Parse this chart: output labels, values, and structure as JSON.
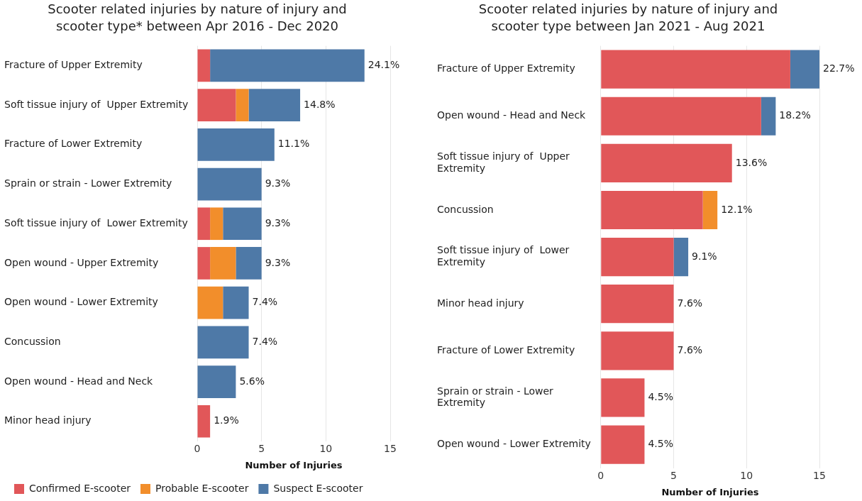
{
  "chart_data": [
    {
      "type": "bar",
      "orientation": "horizontal",
      "stacked": true,
      "title": "Scooter related injuries by nature of injury and scooter type* between Apr 2016 - Dec 2020",
      "xlabel": "Number of Injuries",
      "categories": [
        "Fracture of Upper Extremity",
        "Soft tissue injury of  Upper Extremity",
        "Fracture of Lower Extremity",
        "Sprain or strain - Lower Extremity",
        "Soft tissue injury of  Lower Extremity",
        "Open wound - Upper Extremity",
        "Open wound - Lower Extremity",
        "Concussion",
        "Open wound - Head and Neck",
        "Minor head injury"
      ],
      "series": [
        {
          "name": "Confirmed E-scooter",
          "color": "#e15759",
          "values": [
            1,
            3,
            0,
            0,
            1,
            1,
            0,
            0,
            0,
            1
          ]
        },
        {
          "name": "Probable E-scooter",
          "color": "#f28e2b",
          "values": [
            0,
            1,
            0,
            0,
            1,
            2,
            2,
            0,
            0,
            0
          ]
        },
        {
          "name": "Suspect E-scooter",
          "color": "#4e79a7",
          "values": [
            12,
            4,
            6,
            5,
            3,
            2,
            2,
            4,
            3,
            0
          ]
        }
      ],
      "annotations": [
        {
          "text": "24.1%",
          "x": 13,
          "y": "Fracture of Upper Extremity"
        },
        {
          "text": "14.8%",
          "x": 8,
          "y": "Soft tissue injury of  Upper Extremity"
        },
        {
          "text": "11.1%",
          "x": 6,
          "y": "Fracture of Lower Extremity"
        },
        {
          "text": "9.3%",
          "x": 5,
          "y": "Sprain or strain - Lower Extremity"
        },
        {
          "text": "9.3%",
          "x": 5,
          "y": "Soft tissue injury of  Lower Extremity"
        },
        {
          "text": "9.3%",
          "x": 5,
          "y": "Open wound - Upper Extremity"
        },
        {
          "text": "7.4%",
          "x": 4,
          "y": "Open wound - Lower Extremity"
        },
        {
          "text": "7.4%",
          "x": 4,
          "y": "Concussion"
        },
        {
          "text": "5.6%",
          "x": 3,
          "y": "Open wound - Head and Neck"
        },
        {
          "text": "1.9%",
          "x": 1,
          "y": "Minor head injury"
        }
      ],
      "xlim": [
        0,
        15
      ],
      "xticks": [
        0,
        5,
        10,
        15
      ],
      "grid": "x",
      "legend": "bottom"
    },
    {
      "type": "bar",
      "orientation": "horizontal",
      "stacked": true,
      "title": "Scooter related injuries by nature of injury and scooter type between Jan 2021 - Aug 2021",
      "xlabel": "Number of Injuries",
      "categories": [
        "Fracture of Upper Extremity",
        "Open wound - Head and Neck",
        "Soft tissue injury of  Upper Extremity",
        "Concussion",
        "Soft tissue injury of  Lower Extremity",
        "Minor head injury",
        "Fracture of Lower Extremity",
        "Sprain or strain - Lower Extremity",
        "Open wound - Lower Extremity"
      ],
      "series": [
        {
          "color": "#e15759",
          "values": [
            13,
            11,
            9,
            7,
            5,
            5,
            5,
            3,
            3
          ]
        },
        {
          "color": "#f28e2b",
          "values": [
            0,
            0,
            0,
            1,
            0,
            0,
            0,
            0,
            0
          ]
        },
        {
          "color": "#4e79a7",
          "values": [
            2,
            1,
            0,
            0,
            1,
            0,
            0,
            0,
            0
          ]
        }
      ],
      "annotations": [
        {
          "text": "22.7%",
          "x": 15,
          "y": "Fracture of Upper Extremity"
        },
        {
          "text": "18.2%",
          "x": 12,
          "y": "Open wound - Head and Neck"
        },
        {
          "text": "13.6%",
          "x": 9,
          "y": "Soft tissue injury of  Upper Extremity"
        },
        {
          "text": "12.1%",
          "x": 8,
          "y": "Concussion"
        },
        {
          "text": "9.1%",
          "x": 6,
          "y": "Soft tissue injury of  Lower Extremity"
        },
        {
          "text": "7.6%",
          "x": 5,
          "y": "Minor head injury"
        },
        {
          "text": "7.6%",
          "x": 5,
          "y": "Fracture of Lower Extremity"
        },
        {
          "text": "4.5%",
          "x": 3,
          "y": "Sprain or strain - Lower Extremity"
        },
        {
          "text": "4.5%",
          "x": 3,
          "y": "Open wound - Lower Extremity"
        }
      ],
      "xlim": [
        0,
        15
      ],
      "xticks": [
        0,
        5,
        10,
        15
      ],
      "grid": "x"
    }
  ]
}
